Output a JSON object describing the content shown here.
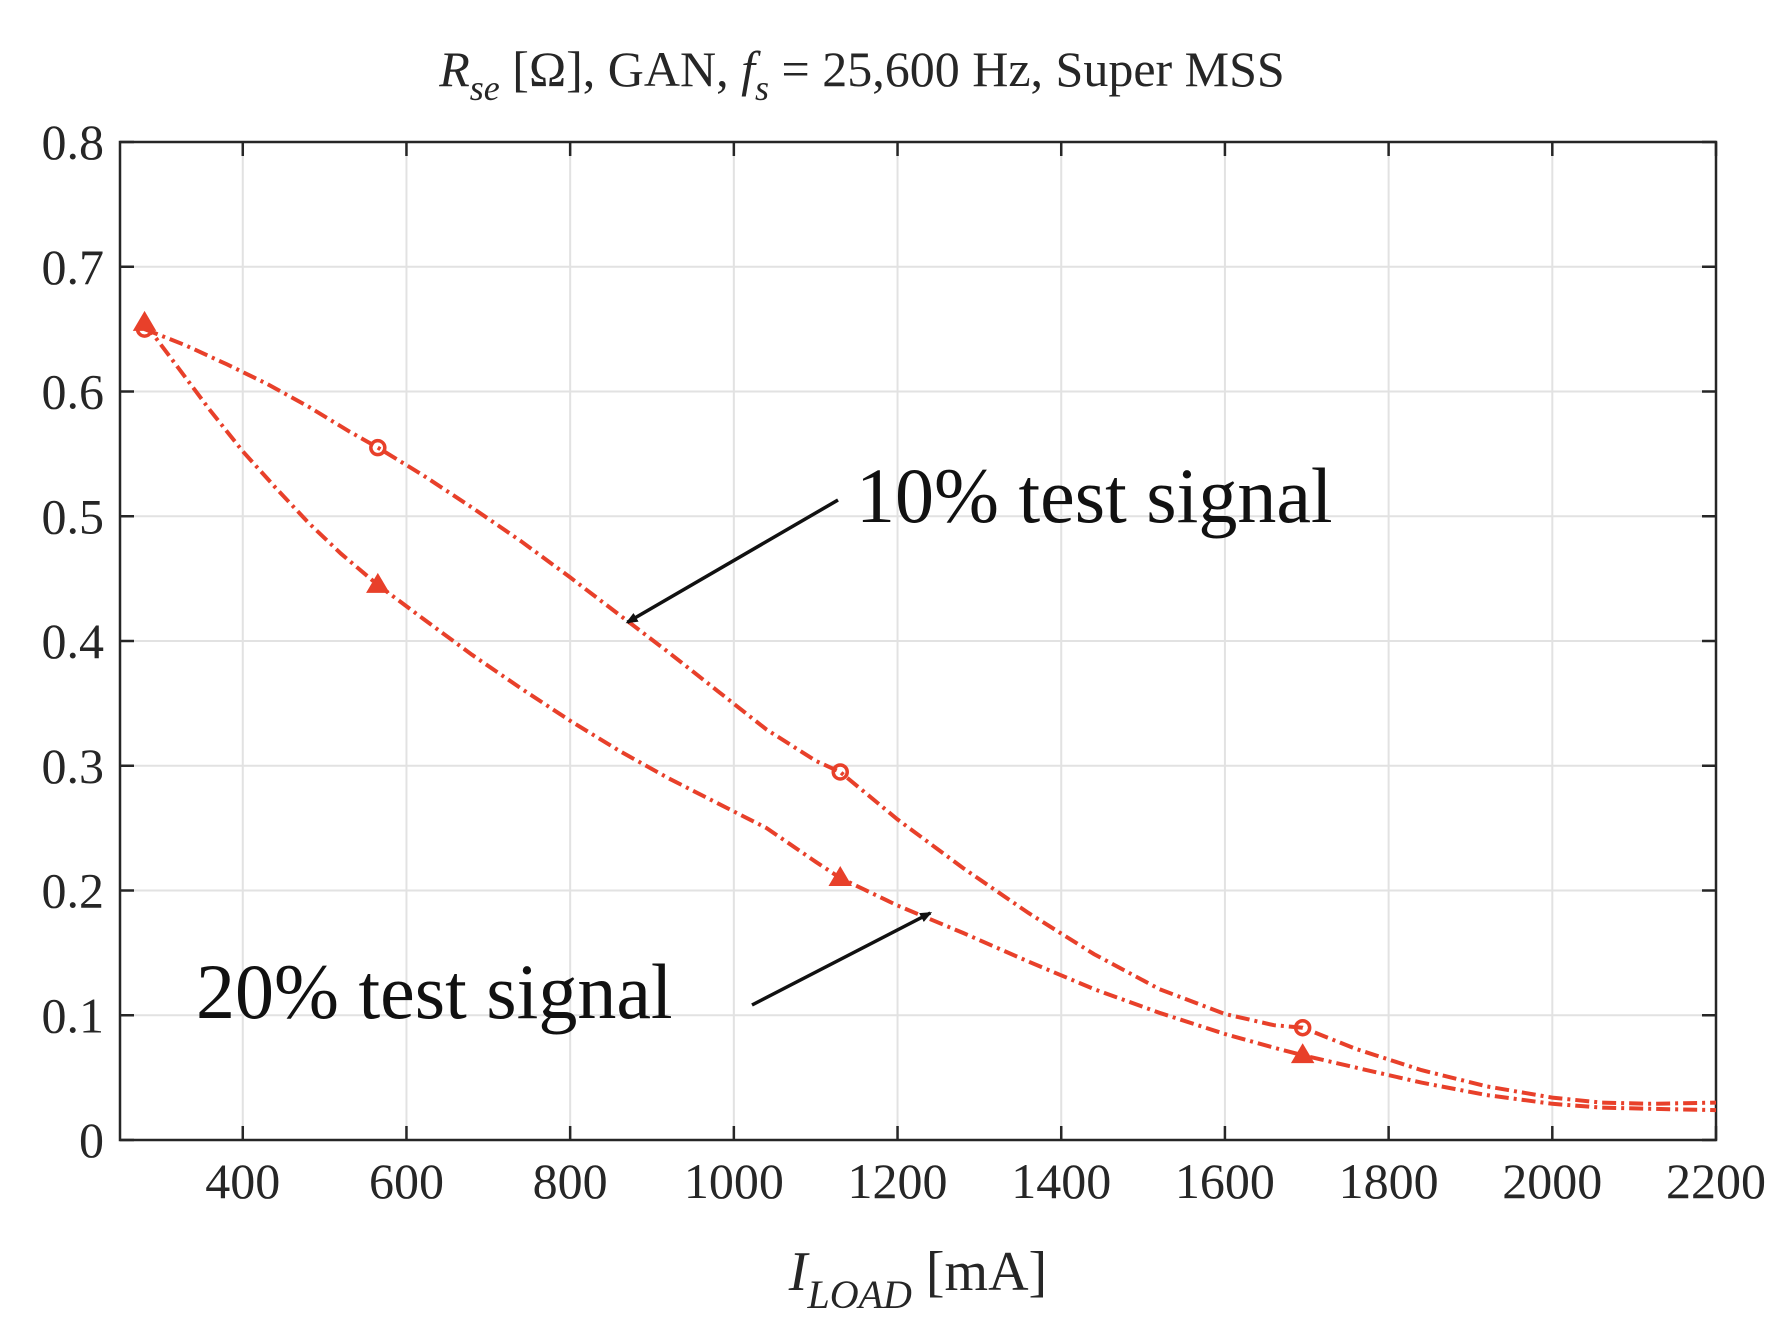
{
  "chart_data": {
    "type": "line",
    "title": "R_se [Ω], GAN, f_s = 25,600 Hz, Super MSS",
    "title_parts": {
      "r_main": "R",
      "r_sub": "se",
      "after_r": " [Ω], GAN, ",
      "f_main": "f",
      "f_sub": "s",
      "after_f": " = 25,600 Hz, Super MSS"
    },
    "xlabel": "I_LOAD [mA]",
    "xlabel_parts": {
      "main": "I",
      "sub": "LOAD",
      "unit": " [mA]"
    },
    "ylabel": "",
    "xlim": [
      250,
      2200
    ],
    "ylim": [
      0,
      0.8
    ],
    "x_ticks": [
      400,
      600,
      800,
      1000,
      1200,
      1400,
      1600,
      1800,
      2000,
      2200
    ],
    "x_tick_labels": [
      "400",
      "600",
      "800",
      "1000",
      "1200",
      "1400",
      "1600",
      "1800",
      "2000",
      "2200"
    ],
    "y_ticks": [
      0,
      0.1,
      0.2,
      0.3,
      0.4,
      0.5,
      0.6,
      0.7,
      0.8
    ],
    "y_tick_labels": [
      "0",
      "0.1",
      "0.2",
      "0.3",
      "0.4",
      "0.5",
      "0.6",
      "0.7",
      "0.8"
    ],
    "grid": true,
    "series": [
      {
        "name": "10% test signal",
        "marker": "circle",
        "color": "#e8402a",
        "x": [
          280,
          565,
          1130,
          1695
        ],
        "y": [
          0.65,
          0.555,
          0.295,
          0.09
        ],
        "curve_x": [
          280,
          330,
          380,
          430,
          480,
          530,
          565,
          620,
          680,
          740,
          800,
          860,
          920,
          980,
          1040,
          1100,
          1130,
          1200,
          1280,
          1360,
          1440,
          1520,
          1600,
          1660,
          1695,
          1760,
          1840,
          1920,
          2000,
          2060,
          2120,
          2200
        ],
        "curve_y": [
          0.65,
          0.637,
          0.622,
          0.606,
          0.588,
          0.568,
          0.555,
          0.533,
          0.507,
          0.48,
          0.451,
          0.421,
          0.391,
          0.36,
          0.329,
          0.304,
          0.295,
          0.257,
          0.218,
          0.182,
          0.149,
          0.121,
          0.101,
          0.092,
          0.09,
          0.073,
          0.056,
          0.043,
          0.034,
          0.03,
          0.029,
          0.03
        ]
      },
      {
        "name": "20% test signal",
        "marker": "triangle",
        "color": "#e8402a",
        "x": [
          280,
          565,
          1130,
          1695
        ],
        "y": [
          0.655,
          0.445,
          0.21,
          0.068
        ],
        "curve_x": [
          280,
          320,
          360,
          400,
          440,
          480,
          520,
          565,
          620,
          680,
          740,
          800,
          860,
          920,
          980,
          1040,
          1100,
          1130,
          1200,
          1280,
          1360,
          1440,
          1520,
          1600,
          1660,
          1695,
          1760,
          1840,
          1920,
          2000,
          2060,
          2120,
          2200
        ],
        "curve_y": [
          0.655,
          0.62,
          0.585,
          0.552,
          0.523,
          0.495,
          0.47,
          0.445,
          0.418,
          0.389,
          0.362,
          0.336,
          0.312,
          0.29,
          0.27,
          0.25,
          0.223,
          0.21,
          0.188,
          0.166,
          0.143,
          0.121,
          0.102,
          0.085,
          0.074,
          0.068,
          0.058,
          0.046,
          0.036,
          0.029,
          0.026,
          0.025,
          0.024
        ]
      }
    ],
    "annotations": [
      {
        "text": "10% test signal",
        "target": [
          870,
          0.415
        ]
      },
      {
        "text": "20% test signal",
        "target": [
          1240,
          0.182
        ]
      }
    ]
  }
}
